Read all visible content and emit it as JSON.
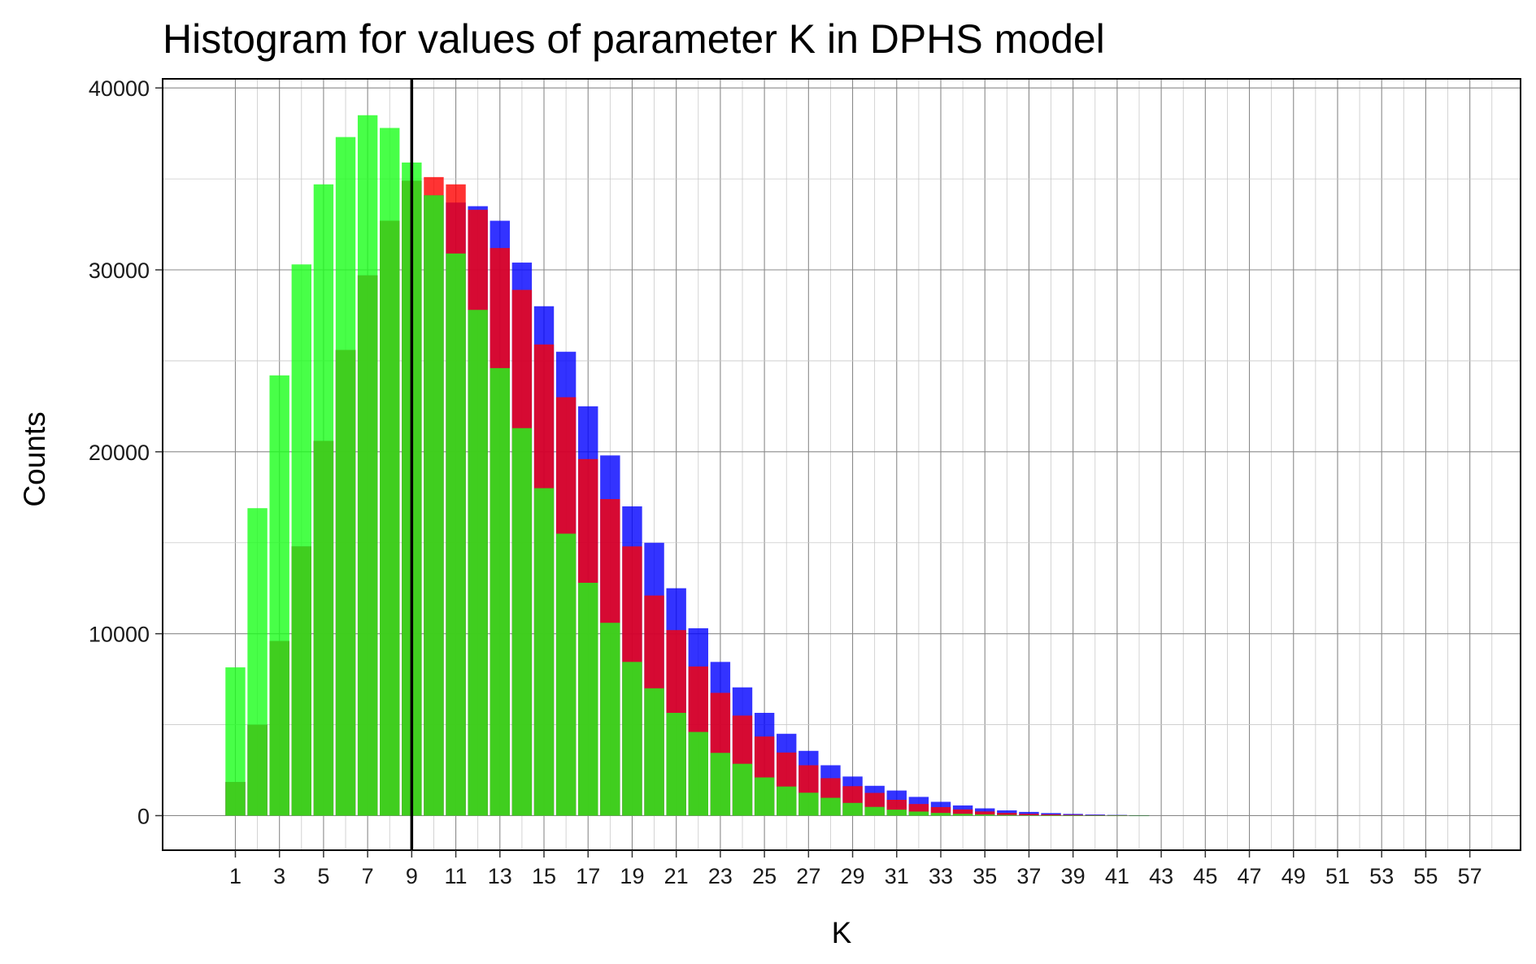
{
  "chart_data": {
    "type": "bar",
    "title": "Histogram for values of parameter K in DPHS model",
    "xlabel": "K",
    "ylabel": "Counts",
    "xlim": [
      -2.3,
      59.3
    ],
    "ylim": [
      -1900,
      40500
    ],
    "x_ticks": [
      1,
      3,
      5,
      7,
      9,
      11,
      13,
      15,
      17,
      19,
      21,
      23,
      25,
      27,
      29,
      31,
      33,
      35,
      37,
      39,
      41,
      43,
      45,
      47,
      49,
      51,
      53,
      55,
      57
    ],
    "y_ticks": [
      0,
      10000,
      20000,
      30000,
      40000
    ],
    "grid": true,
    "vertical_line": {
      "x": 9,
      "color": "#000000"
    },
    "categories": [
      1,
      2,
      3,
      4,
      5,
      6,
      7,
      8,
      9,
      10,
      11,
      12,
      13,
      14,
      15,
      16,
      17,
      18,
      19,
      20,
      21,
      22,
      23,
      24,
      25,
      26,
      27,
      28,
      29,
      30,
      31,
      32,
      33,
      34,
      35,
      36,
      37,
      38,
      39,
      40,
      41,
      42
    ],
    "series": [
      {
        "color": "#0000ff",
        "values": [
          1850,
          5000,
          9600,
          14800,
          20600,
          25600,
          29700,
          32700,
          34900,
          34100,
          33700,
          33500,
          32700,
          30400,
          28000,
          25500,
          22500,
          19800,
          17000,
          15000,
          12500,
          10300,
          8450,
          7050,
          5650,
          4500,
          3560,
          2770,
          2150,
          1640,
          1380,
          1030,
          760,
          560,
          400,
          290,
          205,
          140,
          95,
          62,
          38,
          20
        ]
      },
      {
        "color": "#ff0000",
        "values": [
          1850,
          5000,
          9600,
          14800,
          20600,
          25600,
          29700,
          32700,
          34900,
          35100,
          34700,
          33300,
          31200,
          28900,
          25900,
          23000,
          19600,
          17400,
          14800,
          12100,
          10200,
          8200,
          6750,
          5500,
          4350,
          3470,
          2770,
          2060,
          1620,
          1250,
          870,
          640,
          470,
          340,
          230,
          150,
          100,
          68,
          44,
          28,
          16,
          8
        ]
      },
      {
        "color": "#1aff1a",
        "values": [
          8150,
          16900,
          24200,
          30300,
          34700,
          37300,
          38500,
          37800,
          35900,
          34100,
          30900,
          27800,
          24600,
          21300,
          18000,
          15500,
          12800,
          10600,
          8450,
          7000,
          5650,
          4600,
          3450,
          2850,
          2100,
          1600,
          1260,
          980,
          700,
          480,
          330,
          225,
          150,
          100,
          65,
          40,
          24,
          14,
          8,
          4,
          2,
          1
        ]
      }
    ]
  }
}
